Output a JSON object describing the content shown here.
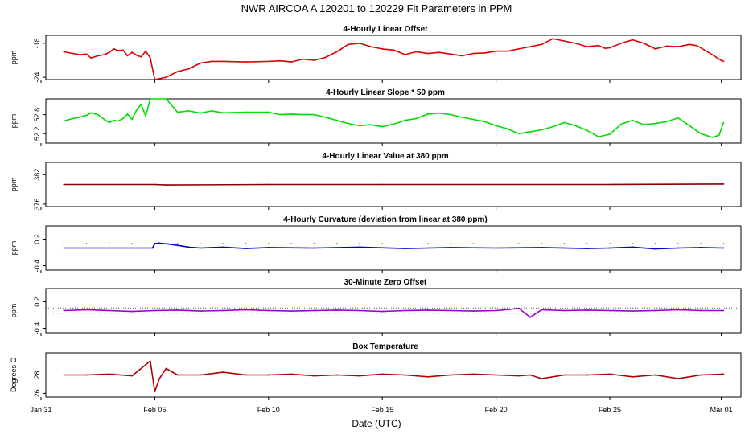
{
  "title": "NWR   AIRCOA A   120201 to 120229   Fit Parameters in PPM",
  "xlabel": "Date (UTC)",
  "chart_data": {
    "type": "line",
    "x_ticks": [
      "Jan 31",
      "Feb 05",
      "Feb 10",
      "Feb 15",
      "Feb 20",
      "Feb 25",
      "Mar 01"
    ],
    "xlim": [
      "2012-01-31",
      "2012-03-01"
    ],
    "panels": [
      {
        "title": "4-Hourly Linear Offset",
        "ylabel": "ppm",
        "color": "#e00000",
        "ylim": [
          -24.4,
          -16.6
        ],
        "y_ticks": [
          "-24",
          "-18"
        ],
        "x": [
          1.0,
          1.4,
          1.7,
          2.0,
          2.2,
          2.5,
          2.8,
          3.0,
          3.2,
          3.4,
          3.6,
          3.8,
          4.0,
          4.2,
          4.4,
          4.6,
          4.8,
          5.0,
          5.5,
          6.0,
          6.5,
          7.0,
          7.5,
          8.0,
          9.0,
          10.0,
          10.5,
          11.0,
          11.5,
          12.0,
          12.5,
          13.0,
          13.5,
          14.0,
          14.5,
          15.0,
          15.5,
          16.0,
          16.5,
          17.0,
          17.5,
          18.0,
          18.5,
          19.0,
          19.5,
          20.0,
          20.5,
          21.0,
          21.5,
          22.0,
          22.5,
          23.0,
          23.5,
          24.0,
          24.5,
          24.8,
          25.0,
          25.5,
          26.0,
          26.5,
          27.0,
          27.5,
          28.0,
          28.5,
          28.8,
          29.0,
          29.5,
          29.8,
          30.0
        ],
        "y": [
          -19.5,
          -19.8,
          -20.0,
          -19.9,
          -20.6,
          -20.2,
          -20.0,
          -19.6,
          -19.0,
          -19.3,
          -19.2,
          -20.2,
          -19.6,
          -20.1,
          -20.4,
          -19.4,
          -20.6,
          -24.4,
          -24.0,
          -23.0,
          -22.5,
          -21.5,
          -21.2,
          -21.2,
          -21.3,
          -21.2,
          -21.1,
          -21.3,
          -20.8,
          -21.0,
          -20.5,
          -19.5,
          -18.2,
          -18.0,
          -18.6,
          -19.0,
          -19.2,
          -20.0,
          -19.5,
          -19.8,
          -19.6,
          -19.9,
          -20.2,
          -19.8,
          -19.7,
          -19.4,
          -19.4,
          -19.0,
          -18.6,
          -18.2,
          -17.2,
          -17.6,
          -18.0,
          -18.6,
          -18.4,
          -18.9,
          -18.8,
          -18.0,
          -17.4,
          -18.0,
          -19.0,
          -18.5,
          -18.6,
          -18.2,
          -18.4,
          -18.8,
          -20.0,
          -20.8,
          -21.2
        ]
      },
      {
        "title": "4-Hourly Linear Slope * 50 ppm",
        "ylabel": "ppm",
        "color": "#00dd00",
        "ylim": [
          51.9,
          53.3
        ],
        "y_ticks": [
          "52.8",
          "52.2"
        ],
        "x": [
          1.0,
          1.4,
          1.7,
          2.0,
          2.2,
          2.5,
          2.8,
          3.0,
          3.2,
          3.4,
          3.6,
          3.8,
          4.0,
          4.2,
          4.4,
          4.6,
          4.8,
          5.0,
          5.5,
          6.0,
          6.5,
          7.0,
          7.5,
          8.0,
          9.0,
          10.0,
          10.5,
          11.0,
          11.5,
          12.0,
          12.5,
          13.0,
          13.5,
          14.0,
          14.5,
          15.0,
          15.5,
          16.0,
          16.5,
          17.0,
          17.5,
          18.0,
          18.5,
          19.0,
          19.5,
          20.0,
          20.5,
          21.0,
          21.5,
          22.0,
          22.5,
          23.0,
          23.5,
          24.0,
          24.5,
          25.0,
          25.5,
          26.0,
          26.5,
          27.0,
          27.5,
          28.0,
          28.5,
          28.8,
          29.0,
          29.5,
          29.8,
          30.0
        ],
        "y": [
          52.6,
          52.68,
          52.72,
          52.78,
          52.86,
          52.8,
          52.64,
          52.55,
          52.62,
          52.6,
          52.68,
          52.82,
          52.65,
          52.95,
          53.12,
          52.76,
          53.3,
          53.3,
          53.3,
          52.88,
          52.92,
          52.85,
          52.92,
          52.86,
          52.88,
          52.88,
          52.8,
          52.82,
          52.8,
          52.8,
          52.72,
          52.62,
          52.52,
          52.45,
          52.48,
          52.42,
          52.5,
          52.62,
          52.68,
          52.82,
          52.85,
          52.8,
          52.72,
          52.65,
          52.58,
          52.45,
          52.35,
          52.2,
          52.26,
          52.32,
          52.42,
          52.55,
          52.45,
          52.3,
          52.1,
          52.18,
          52.5,
          52.62,
          52.48,
          52.52,
          52.58,
          52.7,
          52.45,
          52.3,
          52.2,
          52.08,
          52.15,
          52.55
        ]
      },
      {
        "title": "4-Hourly Linear Value at 380 ppm",
        "ylabel": "ppm",
        "color": "#8b0000",
        "ylim": [
          375.5,
          384.5
        ],
        "y_ticks": [
          "382",
          "376"
        ],
        "x": [
          1.0,
          5.0,
          5.5,
          10.0,
          15.0,
          20.0,
          25.0,
          30.0
        ],
        "y": [
          380.0,
          380.0,
          379.9,
          380.0,
          380.0,
          380.0,
          380.0,
          380.1
        ]
      },
      {
        "title": "4-Hourly Curvature (deviation from linear at 380 ppm)",
        "ylabel": "ppm",
        "color": "#0000cc",
        "ylim": [
          -0.5,
          0.5
        ],
        "y_ticks": [
          "0.2",
          "-0.4"
        ],
        "x": [
          1.0,
          3.0,
          4.9,
          5.0,
          5.2,
          5.6,
          6.0,
          6.5,
          7.0,
          8.0,
          9.0,
          10.0,
          12.0,
          14.0,
          16.0,
          18.0,
          20.0,
          22.0,
          24.0,
          25.0,
          26.0,
          27.0,
          28.0,
          29.0,
          30.0
        ],
        "y": [
          0.0,
          0.0,
          0.0,
          0.1,
          0.11,
          0.09,
          0.06,
          0.02,
          0.0,
          0.02,
          -0.01,
          0.01,
          0.0,
          0.02,
          -0.01,
          0.01,
          0.0,
          0.01,
          -0.01,
          0.0,
          0.02,
          -0.02,
          0.0,
          0.01,
          0.0
        ]
      },
      {
        "title": "30-Minute Zero Offset",
        "ylabel": "ppm",
        "color": "#9900cc",
        "ylim": [
          -0.5,
          0.5
        ],
        "y_ticks": [
          "0.2",
          "-0.4"
        ],
        "x": [
          1.0,
          2.0,
          3.0,
          4.0,
          5.0,
          6.0,
          7.0,
          8.0,
          9.0,
          10.0,
          11.0,
          12.0,
          13.0,
          14.0,
          15.0,
          16.0,
          17.0,
          18.0,
          19.0,
          20.0,
          21.0,
          21.5,
          22.0,
          23.0,
          24.0,
          25.0,
          26.0,
          27.0,
          28.0,
          29.0,
          30.0
        ],
        "y": [
          0.0,
          0.02,
          0.0,
          -0.02,
          0.0,
          0.01,
          -0.01,
          0.0,
          0.02,
          0.0,
          -0.01,
          0.0,
          0.01,
          0.0,
          -0.02,
          0.0,
          0.01,
          0.0,
          -0.01,
          0.0,
          0.05,
          -0.15,
          0.02,
          0.0,
          0.01,
          0.0,
          -0.01,
          0.0,
          0.02,
          0.0,
          0.0
        ]
      },
      {
        "title": "Box Temperature",
        "ylabel": "Degrees C",
        "color": "#b00000",
        "ylim": [
          25.6,
          30.4
        ],
        "y_ticks": [
          "28",
          "26"
        ],
        "x": [
          1.0,
          2.0,
          3.0,
          4.0,
          4.8,
          5.0,
          5.2,
          5.5,
          6.0,
          7.0,
          8.0,
          9.0,
          10.0,
          11.0,
          12.0,
          13.0,
          14.0,
          15.0,
          16.0,
          17.0,
          18.0,
          19.0,
          20.0,
          21.0,
          21.5,
          22.0,
          23.0,
          24.0,
          25.0,
          26.0,
          27.0,
          28.0,
          29.0,
          30.0
        ],
        "y": [
          28.0,
          28.0,
          28.1,
          27.9,
          29.5,
          26.2,
          27.6,
          28.7,
          28.0,
          28.0,
          28.3,
          28.0,
          28.0,
          28.1,
          27.9,
          28.0,
          27.9,
          28.1,
          28.0,
          27.8,
          28.0,
          28.1,
          28.0,
          27.9,
          28.0,
          27.6,
          28.0,
          28.0,
          28.1,
          27.8,
          28.0,
          27.6,
          28.0,
          28.1
        ]
      }
    ]
  }
}
